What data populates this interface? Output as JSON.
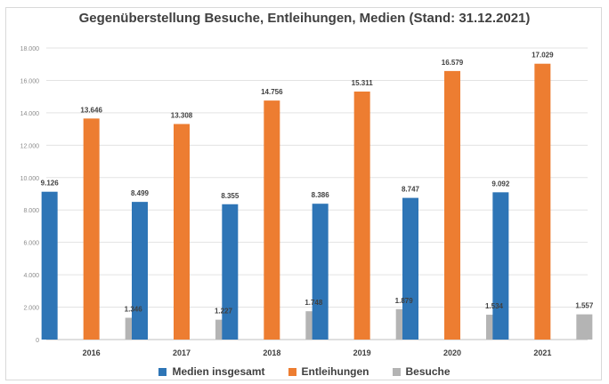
{
  "chart_data": {
    "type": "bar",
    "title": "Gegenüberstellung Besuche, Entleihungen, Medien (Stand: 31.12.2021)",
    "categories": [
      "2016",
      "2017",
      "2018",
      "2019",
      "2020",
      "2021"
    ],
    "ylim": [
      0,
      18000
    ],
    "y_ticks": [
      "0",
      "2.000",
      "4.000",
      "6.000",
      "8.000",
      "10.000",
      "12.000",
      "14.000",
      "16.000",
      "18.000"
    ],
    "y_tick_values": [
      0,
      2000,
      4000,
      6000,
      8000,
      10000,
      12000,
      14000,
      16000,
      18000
    ],
    "grid": true,
    "legend_position": "bottom",
    "series": [
      {
        "name": "Medien insgesamt",
        "color": "#2e75b6",
        "values": [
          9126,
          8499,
          8355,
          8386,
          8747,
          9092
        ],
        "labels": [
          "9.126",
          "8.499",
          "8.355",
          "8.386",
          "8.747",
          "9.092"
        ]
      },
      {
        "name": "Entleihungen",
        "color": "#ed7d31",
        "values": [
          13646,
          13308,
          14756,
          15311,
          16579,
          17029
        ],
        "labels": [
          "13.646",
          "13.308",
          "14.756",
          "15.311",
          "16.579",
          "17.029"
        ]
      },
      {
        "name": "Besuche",
        "color": "#b4b4b4",
        "values": [
          1346,
          1227,
          1748,
          1879,
          1534,
          1557
        ],
        "labels": [
          "1.346",
          "1.227",
          "1.748",
          "1.879",
          "1.534",
          "1.557"
        ]
      }
    ]
  }
}
